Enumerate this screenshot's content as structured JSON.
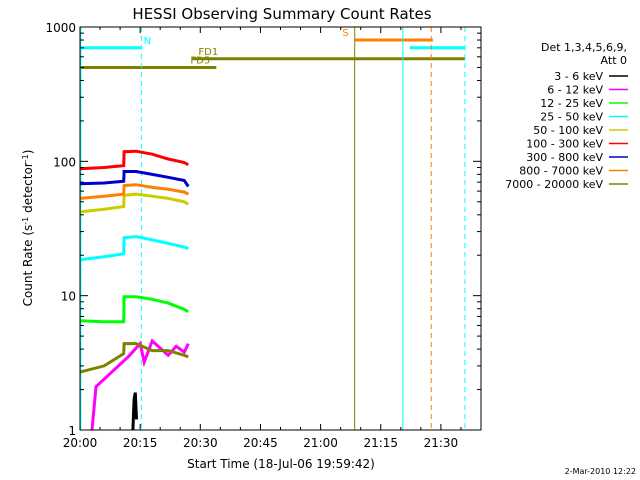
{
  "chart_data": {
    "type": "line",
    "title": "HESSI Observing Summary Count Rates",
    "xlabel": "Start Time (18-Jul-06 19:59:42)",
    "ylabel_main": "Count Rate (s",
    "ylabel_sup1": "-1",
    "ylabel_mid": " detector",
    "ylabel_sup2": "-1",
    "ylabel_end": ")",
    "x_unit": "minutes after 20:00 UT",
    "xlim": [
      0,
      100
    ],
    "ylim": [
      1,
      1000
    ],
    "y_scale": "log",
    "x_ticks": [
      {
        "v": 0,
        "label": "20:00"
      },
      {
        "v": 15,
        "label": "20:15"
      },
      {
        "v": 30,
        "label": "20:30"
      },
      {
        "v": 45,
        "label": "20:45"
      },
      {
        "v": 60,
        "label": "21:00"
      },
      {
        "v": 75,
        "label": "21:15"
      },
      {
        "v": 90,
        "label": "21:30"
      }
    ],
    "y_ticks": [
      {
        "v": 1,
        "label": "1"
      },
      {
        "v": 10,
        "label": "10"
      },
      {
        "v": 100,
        "label": "100"
      },
      {
        "v": 1000,
        "label": "1000"
      }
    ],
    "legend_header": [
      "Det 1,3,4,5,6,9,",
      "Att 0"
    ],
    "legend_position": "right",
    "series": [
      {
        "name": "3 - 6 keV",
        "color": "#000000",
        "x": [
          13.2,
          13.5,
          13.8,
          14.1
        ],
        "y": [
          1.0,
          1.7,
          1.9,
          1.2
        ]
      },
      {
        "name": "6 - 12 keV",
        "color": "#ff00ff",
        "x": [
          3,
          4,
          12,
          15,
          16,
          18,
          22,
          24,
          26,
          27
        ],
        "y": [
          1.0,
          2.1,
          3.5,
          4.4,
          3.2,
          4.6,
          3.6,
          4.2,
          3.8,
          4.4
        ]
      },
      {
        "name": "12 - 25 keV",
        "color": "#00ff00",
        "x": [
          0,
          6,
          10.9,
          11,
          14,
          18,
          22,
          26,
          27
        ],
        "y": [
          6.5,
          6.4,
          6.4,
          9.8,
          9.8,
          9.4,
          8.8,
          7.9,
          7.6
        ]
      },
      {
        "name": "25 - 50 keV",
        "color": "#00ffff",
        "x": [
          0,
          6,
          10.9,
          11,
          14,
          18,
          22,
          26,
          27
        ],
        "y": [
          18.5,
          19.5,
          20.5,
          27,
          27.5,
          26,
          24.5,
          23,
          22.5
        ]
      },
      {
        "name": "50 - 100 keV",
        "color": "#cccc00",
        "x": [
          0,
          6,
          10.9,
          11,
          14,
          18,
          22,
          26,
          27
        ],
        "y": [
          42,
          44,
          46,
          56,
          57,
          55,
          53,
          50,
          48
        ]
      },
      {
        "name": "100 - 300 keV",
        "color": "#ff0000",
        "x": [
          0,
          6,
          10.9,
          11,
          14,
          18,
          22,
          26,
          27
        ],
        "y": [
          88,
          90,
          93,
          118,
          119,
          113,
          104,
          98,
          94
        ]
      },
      {
        "name": "300 - 800 keV",
        "color": "#0000cc",
        "x": [
          0,
          6,
          10.9,
          11,
          14,
          18,
          22,
          26,
          27
        ],
        "y": [
          68,
          69,
          71,
          84,
          84,
          80,
          76,
          72,
          65
        ]
      },
      {
        "name": "800 - 7000 keV",
        "color": "#ff8000",
        "x": [
          0,
          6,
          10.9,
          11,
          14,
          18,
          22,
          26,
          27
        ],
        "y": [
          53,
          55,
          57,
          66,
          67,
          64,
          62,
          59,
          57
        ]
      },
      {
        "name": "7000 - 20000 keV",
        "color": "#808000",
        "x": [
          0,
          6,
          10.9,
          11,
          14,
          18,
          22,
          26,
          27
        ],
        "y": [
          2.7,
          3.0,
          3.7,
          4.4,
          4.4,
          3.9,
          3.9,
          3.6,
          3.5
        ]
      }
    ],
    "flag_bars": [
      {
        "label": "N",
        "color": "#00ffff",
        "y": 700,
        "segments": [
          [
            0,
            15.3
          ],
          [
            82.2,
            96
          ]
        ]
      },
      {
        "label": "S",
        "color": "#ff8000",
        "y": 800,
        "segments": [
          [
            68.5,
            88
          ]
        ]
      },
      {
        "label": "FD1",
        "color": "#808000",
        "y": 580,
        "segments": [
          [
            28,
            96
          ]
        ]
      },
      {
        "label": "FD5",
        "color": "#808000",
        "y": 500,
        "segments": [
          [
            0,
            34
          ]
        ]
      }
    ],
    "vlines": [
      {
        "x": 0.2,
        "color": "#00ffff",
        "style": "solid"
      },
      {
        "x": 15.3,
        "color": "#00ffff",
        "style": "dashed"
      },
      {
        "x": 68.5,
        "color": "#808000",
        "style": "solid"
      },
      {
        "x": 80.5,
        "color": "#00ffff",
        "style": "solid"
      },
      {
        "x": 87.6,
        "color": "#ff8000",
        "style": "dashed"
      },
      {
        "x": 96,
        "color": "#00ffff",
        "style": "dashed"
      }
    ]
  },
  "footer_stamp": "2-Mar-2010 12:22"
}
